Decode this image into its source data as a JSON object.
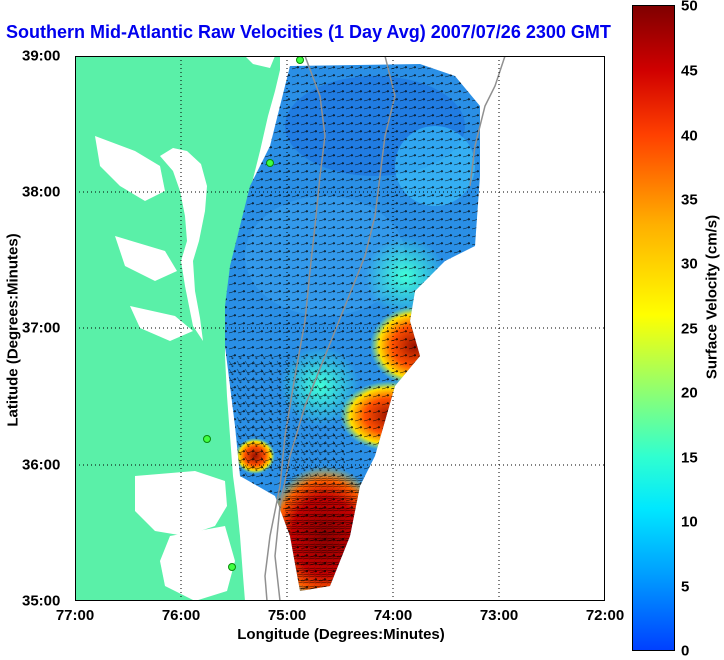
{
  "title": "Southern Mid-Atlantic Raw Velocities (1 Day Avg) 2007/07/26 2300 GMT",
  "xlabel": "Longitude (Degrees:Minutes)",
  "ylabel": "Latitude (Degrees:Minutes)",
  "colorbar_label": "Surface Velocity (cm/s)",
  "x_ticks": [
    "77:00",
    "76:00",
    "75:00",
    "74:00",
    "73:00",
    "72:00"
  ],
  "y_ticks": [
    "39:00",
    "38:00",
    "37:00",
    "36:00",
    "35:00"
  ],
  "colorbar_ticks": [
    "50",
    "45",
    "40",
    "35",
    "30",
    "25",
    "20",
    "15",
    "10",
    "5",
    "0"
  ],
  "map_extent": {
    "lon_min": -77,
    "lon_max": -72,
    "lat_min": 35,
    "lat_max": 39
  },
  "colorbar_range": [
    0,
    50
  ],
  "colors": {
    "land": "#5af0a8",
    "title": "#0000ee",
    "low_velocity": "#2a8fe6",
    "high_velocity": "#8b0000",
    "arrows": "#000000",
    "bathymetry": "#909090"
  }
}
